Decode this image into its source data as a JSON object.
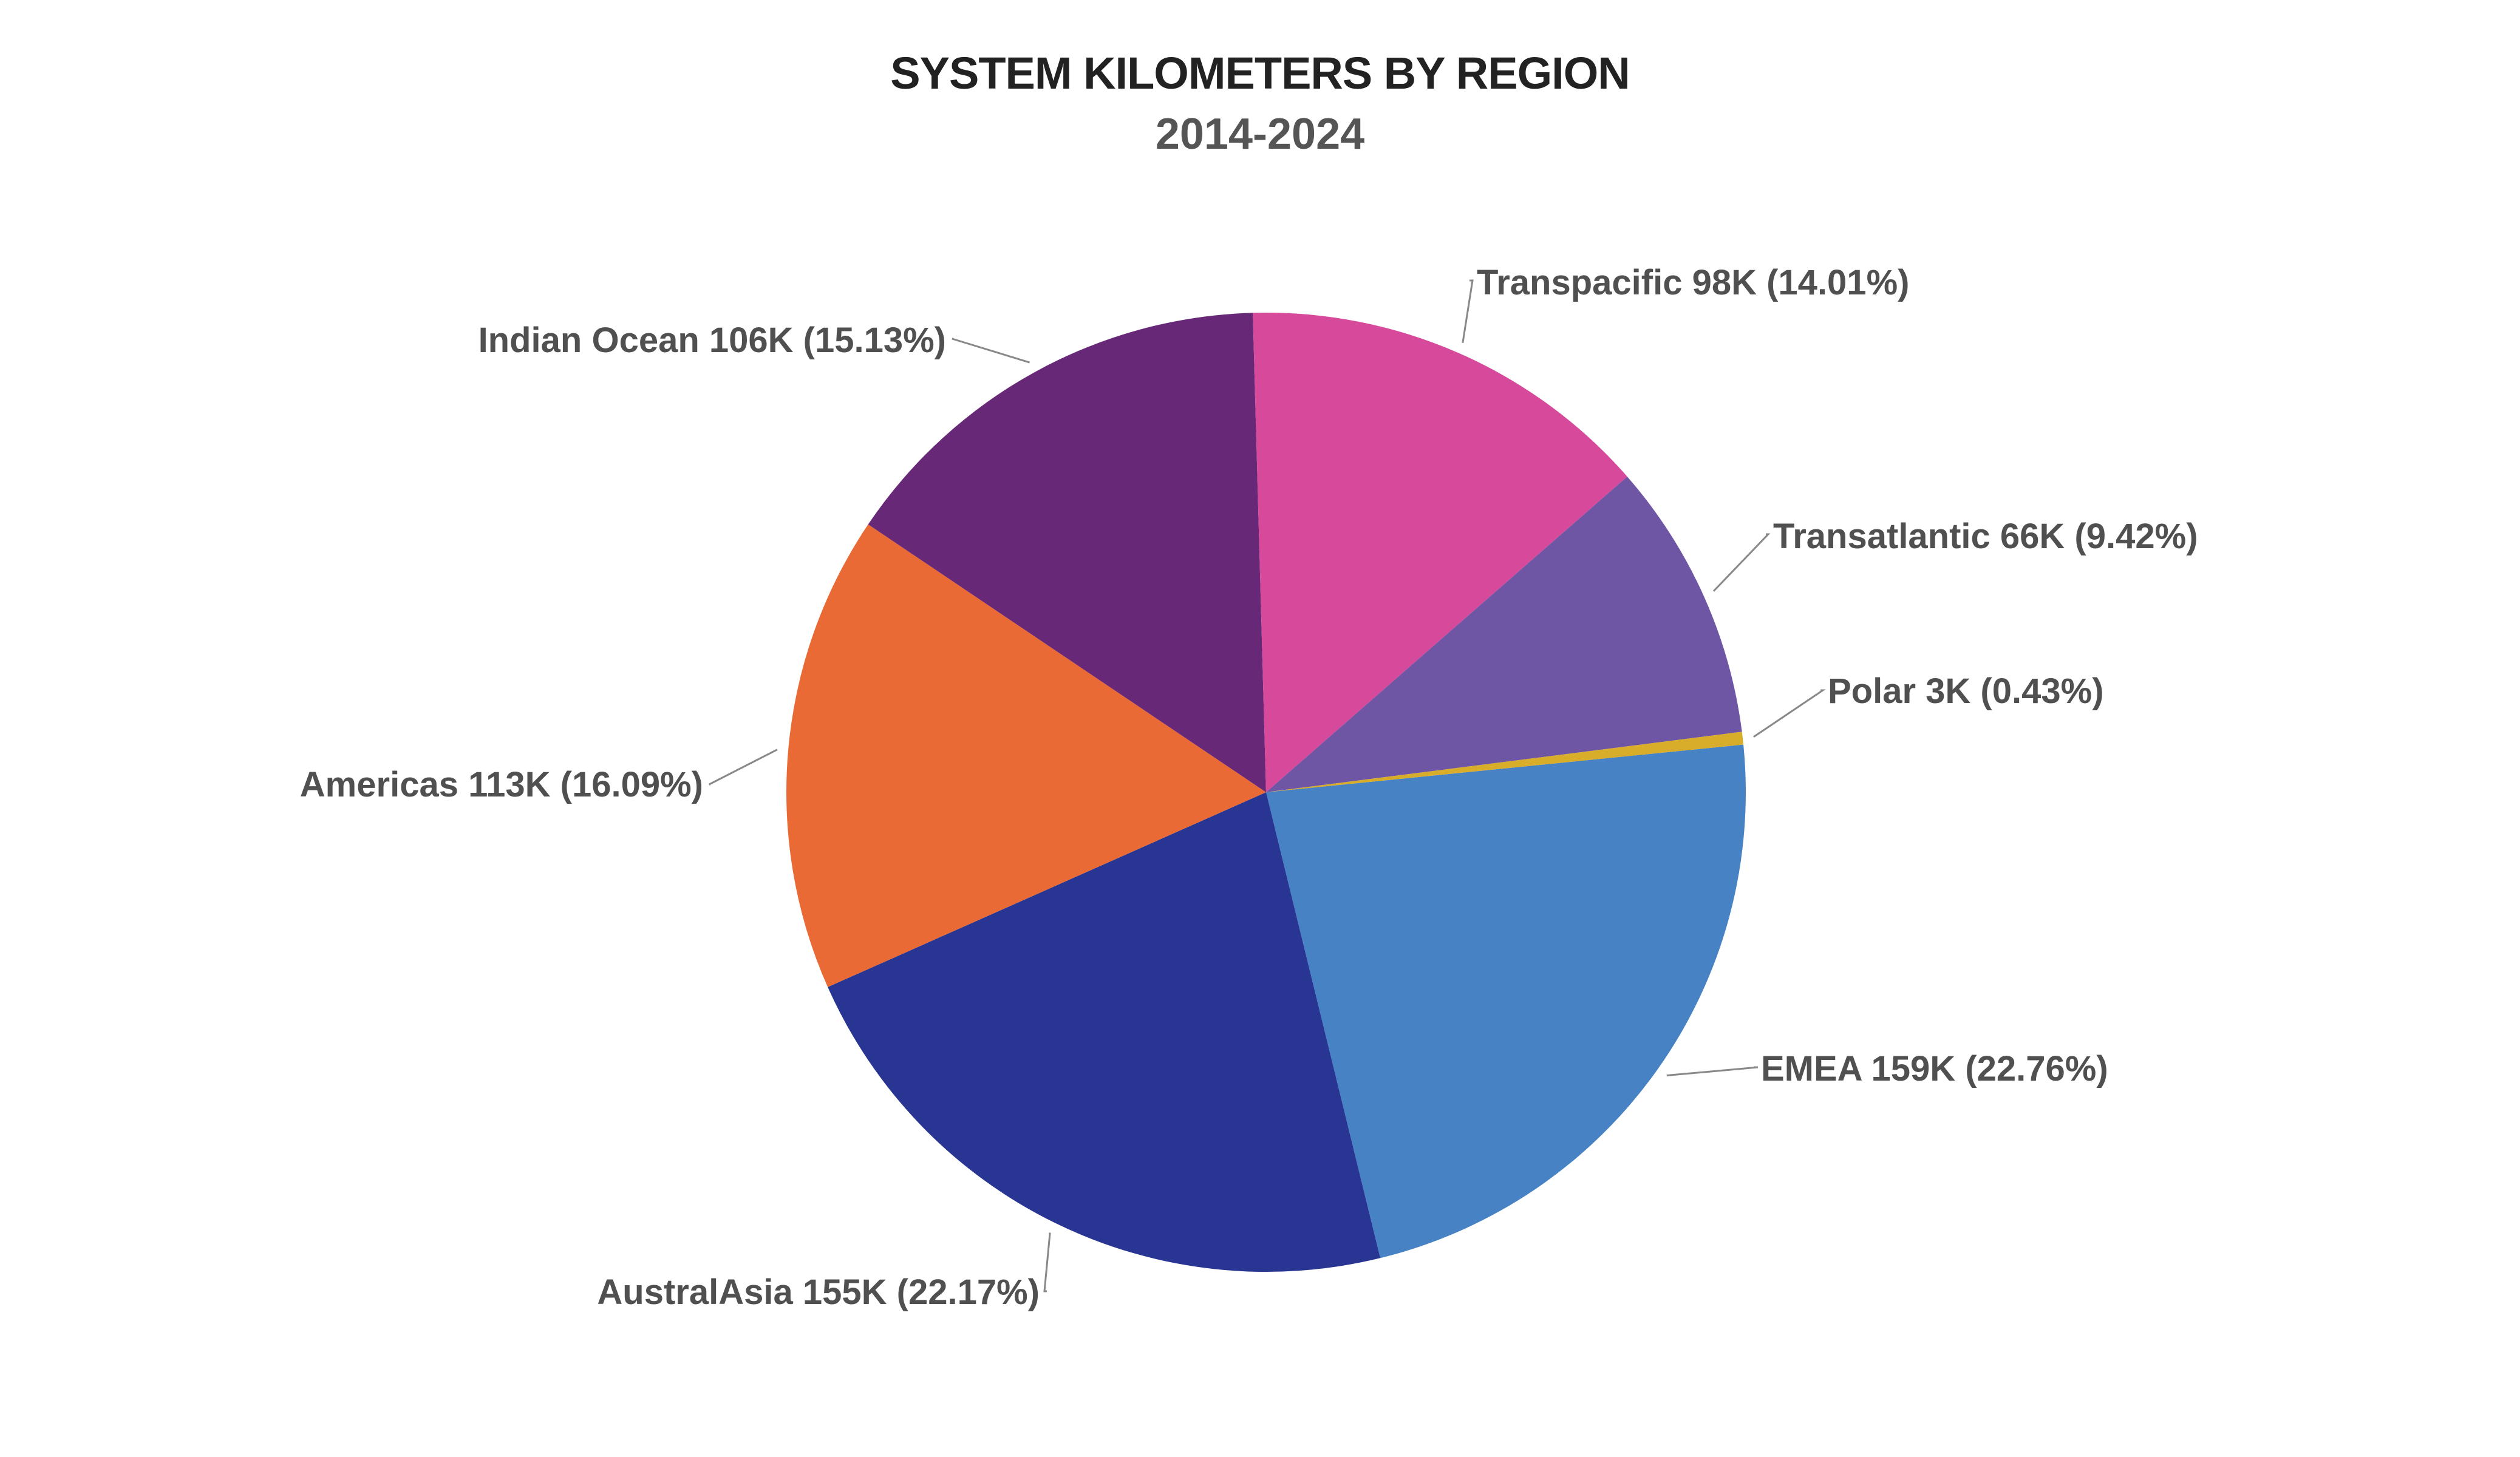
{
  "chart_data": {
    "type": "pie",
    "title": "SYSTEM KILOMETERS BY REGION",
    "subtitle": "2014-2024",
    "slices": [
      {
        "name": "EMEA",
        "value_label": "159K",
        "percent": 22.76,
        "color": "#4682c4",
        "label": "EMEA 159K (22.76%)"
      },
      {
        "name": "AustralAsia",
        "value_label": "155K",
        "percent": 22.17,
        "color": "#283593",
        "label": "AustralAsia 155K (22.17%)"
      },
      {
        "name": "Americas",
        "value_label": "113K",
        "percent": 16.09,
        "color": "#e96a35",
        "label": "Americas 113K (16.09%)"
      },
      {
        "name": "Indian Ocean",
        "value_label": "106K",
        "percent": 15.13,
        "color": "#682878",
        "label": "Indian Ocean 106K (15.13%)"
      },
      {
        "name": "Transpacific",
        "value_label": "98K",
        "percent": 14.01,
        "color": "#d7499a",
        "label": "Transpacific 98K (14.01%)"
      },
      {
        "name": "Transatlantic",
        "value_label": "66K",
        "percent": 9.42,
        "color": "#6f56a5",
        "label": "Transatlantic 66K (9.42%)"
      },
      {
        "name": "Polar",
        "value_label": "3K",
        "percent": 0.43,
        "color": "#d8ad2a",
        "label": "Polar 3K (0.43%)"
      }
    ]
  }
}
